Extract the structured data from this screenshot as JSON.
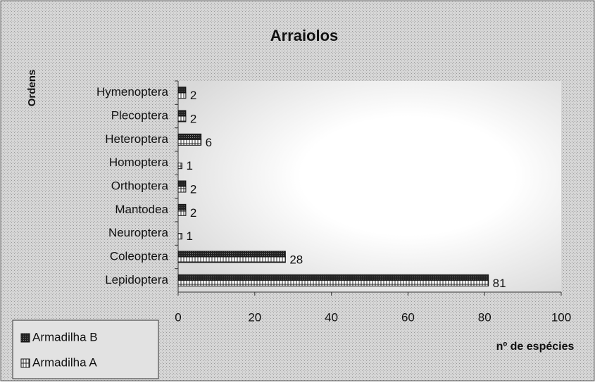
{
  "chart_data": {
    "type": "bar",
    "orientation": "horizontal",
    "title": "Arraiolos",
    "y_label": "Ordens",
    "x_label": "nº de espécies",
    "categories": [
      "Hymenoptera",
      "Plecoptera",
      "Heteroptera",
      "Homoptera",
      "Orthoptera",
      "Mantodea",
      "Neuroptera",
      "Coleoptera",
      "Lepidoptera"
    ],
    "series": [
      {
        "name": "Armadilha B",
        "color": "#222222",
        "values": [
          2,
          2,
          6,
          0,
          2,
          2,
          0,
          28,
          81
        ]
      },
      {
        "name": "Armadilha A",
        "color": "#ffffff",
        "values": [
          2,
          2,
          6,
          1,
          2,
          2,
          1,
          28,
          81
        ]
      }
    ],
    "labeled_series": 1,
    "xlim": [
      0,
      100
    ],
    "xticks": [
      0,
      20,
      40,
      60,
      80,
      100
    ],
    "grid": false,
    "legend": "bottom-left"
  }
}
